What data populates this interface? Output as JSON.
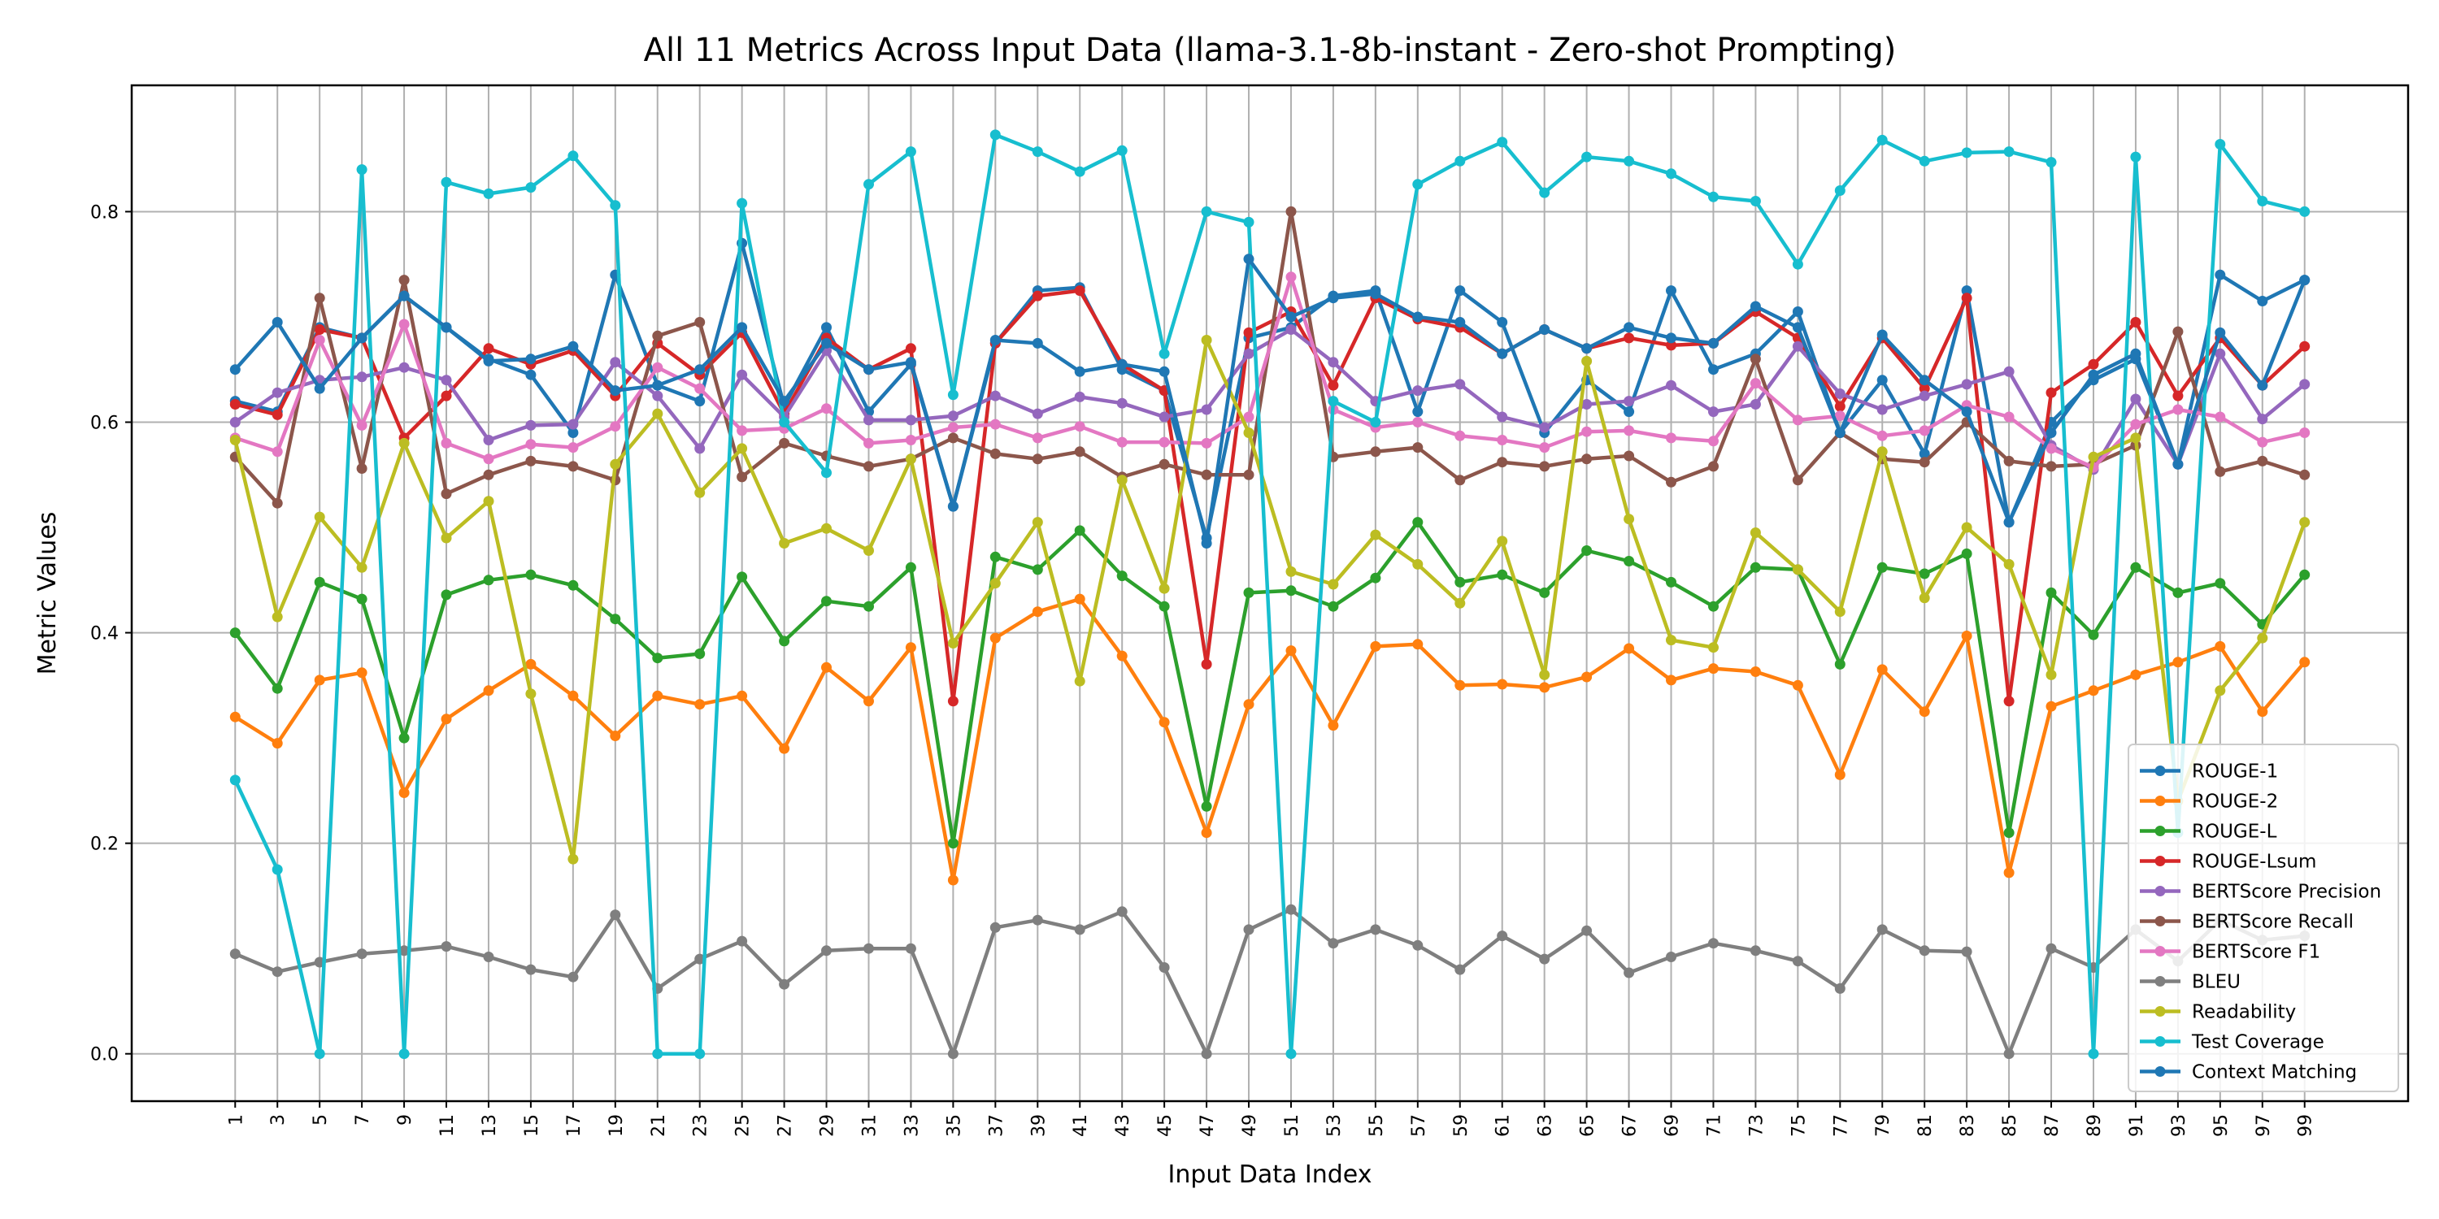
{
  "chart_data": {
    "type": "line",
    "title": "All 11 Metrics Across Input Data (llama-3.1-8b-instant - Zero-shot Prompting)",
    "xlabel": "Input Data Index",
    "ylabel": "Metric Values",
    "ylim": [
      -0.045,
      0.92
    ],
    "yticks": [
      "0.0",
      "0.2",
      "0.4",
      "0.6",
      "0.8"
    ],
    "grid": true,
    "legend_position": "bottom-right",
    "x": [
      1,
      3,
      5,
      7,
      9,
      11,
      13,
      15,
      17,
      19,
      21,
      23,
      25,
      27,
      29,
      31,
      33,
      35,
      37,
      39,
      41,
      43,
      45,
      47,
      49,
      51,
      53,
      55,
      57,
      59,
      61,
      63,
      65,
      67,
      69,
      71,
      73,
      75,
      77,
      79,
      81,
      83,
      85,
      87,
      89,
      91,
      93,
      95,
      97,
      99
    ],
    "xtick_labels": [
      "1",
      "3",
      "5",
      "7",
      "9",
      "11",
      "13",
      "15",
      "17",
      "19",
      "21",
      "23",
      "25",
      "27",
      "29",
      "31",
      "33",
      "35",
      "37",
      "39",
      "41",
      "43",
      "45",
      "47",
      "49",
      "51",
      "53",
      "55",
      "57",
      "59",
      "61",
      "63",
      "65",
      "67",
      "69",
      "71",
      "73",
      "75",
      "77",
      "79",
      "81",
      "83",
      "85",
      "87",
      "89",
      "91",
      "93",
      "95",
      "97",
      "99"
    ],
    "series": [
      {
        "name": "ROUGE-1",
        "color": "#1f77b4",
        "values": [
          0.62,
          0.61,
          0.69,
          0.68,
          0.72,
          0.69,
          0.66,
          0.645,
          0.59,
          0.74,
          0.635,
          0.62,
          0.77,
          0.615,
          0.69,
          0.61,
          0.655,
          0.52,
          0.675,
          0.725,
          0.728,
          0.65,
          0.63,
          0.49,
          0.68,
          0.69,
          0.72,
          0.725,
          0.61,
          0.725,
          0.695,
          0.59,
          0.64,
          0.61,
          0.725,
          0.65,
          0.665,
          0.705,
          0.59,
          0.64,
          0.57,
          0.725,
          0.505,
          0.6,
          0.64,
          0.66,
          0.56,
          0.74,
          0.715,
          0.735
        ]
      },
      {
        "name": "ROUGE-2",
        "color": "#ff7f0e",
        "values": [
          0.32,
          0.295,
          0.355,
          0.362,
          0.248,
          0.318,
          0.345,
          0.37,
          0.34,
          0.302,
          0.34,
          0.332,
          0.34,
          0.29,
          0.367,
          0.335,
          0.386,
          0.165,
          0.395,
          0.42,
          0.432,
          0.378,
          0.315,
          0.21,
          0.332,
          0.383,
          0.312,
          0.387,
          0.389,
          0.35,
          0.351,
          0.348,
          0.358,
          0.385,
          0.355,
          0.366,
          0.363,
          0.35,
          0.265,
          0.365,
          0.325,
          0.397,
          0.172,
          0.33,
          0.345,
          0.36,
          0.372,
          0.387,
          0.325,
          0.372
        ]
      },
      {
        "name": "ROUGE-L",
        "color": "#2ca02c",
        "values": [
          0.4,
          0.347,
          0.448,
          0.432,
          0.3,
          0.436,
          0.45,
          0.455,
          0.445,
          0.413,
          0.376,
          0.38,
          0.453,
          0.392,
          0.43,
          0.425,
          0.462,
          0.2,
          0.472,
          0.46,
          0.497,
          0.454,
          0.425,
          0.235,
          0.438,
          0.44,
          0.425,
          0.452,
          0.505,
          0.448,
          0.455,
          0.438,
          0.478,
          0.468,
          0.448,
          0.425,
          0.462,
          0.46,
          0.37,
          0.462,
          0.456,
          0.475,
          0.21,
          0.438,
          0.398,
          0.462,
          0.438,
          0.447,
          0.408,
          0.455
        ]
      },
      {
        "name": "ROUGE-Lsum",
        "color": "#d62728",
        "values": [
          0.617,
          0.607,
          0.688,
          0.68,
          0.585,
          0.625,
          0.67,
          0.655,
          0.668,
          0.625,
          0.675,
          0.645,
          0.685,
          0.608,
          0.68,
          0.65,
          0.67,
          0.335,
          0.675,
          0.72,
          0.725,
          0.655,
          0.63,
          0.37,
          0.685,
          0.705,
          0.635,
          0.718,
          0.698,
          0.69,
          0.665,
          0.688,
          0.67,
          0.68,
          0.673,
          0.675,
          0.705,
          0.68,
          0.615,
          0.68,
          0.632,
          0.718,
          0.335,
          0.628,
          0.655,
          0.695,
          0.625,
          0.68,
          0.635,
          0.672
        ]
      },
      {
        "name": "BERTScore Precision",
        "color": "#9467bd",
        "values": [
          0.6,
          0.628,
          0.64,
          0.643,
          0.652,
          0.64,
          0.583,
          0.597,
          0.598,
          0.657,
          0.625,
          0.575,
          0.645,
          0.605,
          0.668,
          0.602,
          0.602,
          0.606,
          0.625,
          0.608,
          0.624,
          0.618,
          0.605,
          0.612,
          0.665,
          0.688,
          0.657,
          0.62,
          0.63,
          0.636,
          0.605,
          0.595,
          0.617,
          0.62,
          0.635,
          0.61,
          0.617,
          0.672,
          0.627,
          0.612,
          0.625,
          0.636,
          0.648,
          0.578,
          0.555,
          0.622,
          0.56,
          0.665,
          0.603,
          0.636
        ]
      },
      {
        "name": "BERTScore Recall",
        "color": "#8c564b",
        "values": [
          0.567,
          0.523,
          0.718,
          0.556,
          0.735,
          0.532,
          0.55,
          0.563,
          0.558,
          0.545,
          0.682,
          0.695,
          0.548,
          0.58,
          0.568,
          0.558,
          0.565,
          0.585,
          0.57,
          0.565,
          0.572,
          0.548,
          0.56,
          0.55,
          0.55,
          0.8,
          0.567,
          0.572,
          0.576,
          0.545,
          0.562,
          0.558,
          0.565,
          0.568,
          0.543,
          0.558,
          0.66,
          0.545,
          0.59,
          0.565,
          0.562,
          0.6,
          0.563,
          0.558,
          0.56,
          0.578,
          0.686,
          0.553,
          0.563,
          0.55
        ]
      },
      {
        "name": "BERTScore F1",
        "color": "#e377c2",
        "values": [
          0.585,
          0.572,
          0.678,
          0.597,
          0.693,
          0.58,
          0.565,
          0.579,
          0.576,
          0.596,
          0.652,
          0.632,
          0.592,
          0.594,
          0.613,
          0.58,
          0.583,
          0.595,
          0.598,
          0.585,
          0.596,
          0.581,
          0.581,
          0.58,
          0.605,
          0.738,
          0.612,
          0.595,
          0.6,
          0.587,
          0.583,
          0.576,
          0.591,
          0.592,
          0.585,
          0.582,
          0.637,
          0.602,
          0.606,
          0.587,
          0.592,
          0.616,
          0.605,
          0.575,
          0.557,
          0.598,
          0.612,
          0.605,
          0.581,
          0.59
        ]
      },
      {
        "name": "BLEU",
        "color": "#7f7f7f",
        "values": [
          0.095,
          0.078,
          0.087,
          0.095,
          0.098,
          0.102,
          0.092,
          0.08,
          0.073,
          0.132,
          0.062,
          0.09,
          0.107,
          0.066,
          0.098,
          0.1,
          0.1,
          0.0,
          0.12,
          0.127,
          0.118,
          0.135,
          0.082,
          0.0,
          0.118,
          0.137,
          0.105,
          0.118,
          0.103,
          0.08,
          0.112,
          0.09,
          0.117,
          0.077,
          0.092,
          0.105,
          0.098,
          0.088,
          0.062,
          0.118,
          0.098,
          0.097,
          0.0,
          0.1,
          0.082,
          0.118,
          0.088,
          0.127,
          0.108,
          0.112
        ]
      },
      {
        "name": "Readability",
        "color": "#bcbd22",
        "values": [
          0.583,
          0.415,
          0.51,
          0.462,
          0.58,
          0.49,
          0.525,
          0.342,
          0.185,
          0.56,
          0.608,
          0.533,
          0.575,
          0.485,
          0.499,
          0.478,
          0.565,
          0.39,
          0.447,
          0.505,
          0.354,
          0.545,
          0.442,
          0.678,
          0.59,
          0.458,
          0.446,
          0.493,
          0.465,
          0.428,
          0.487,
          0.36,
          0.658,
          0.508,
          0.393,
          0.386,
          0.495,
          0.46,
          0.42,
          0.572,
          0.433,
          0.5,
          0.465,
          0.36,
          0.567,
          0.585,
          0.24,
          0.345,
          0.395,
          0.505
        ]
      },
      {
        "name": "Test Coverage",
        "color": "#17becf",
        "values": [
          0.26,
          0.175,
          0.0,
          0.84,
          0.0,
          0.828,
          0.817,
          0.823,
          0.853,
          0.806,
          0.0,
          0.0,
          0.808,
          0.6,
          0.552,
          0.826,
          0.857,
          0.626,
          0.873,
          0.857,
          0.838,
          0.858,
          0.665,
          0.8,
          0.79,
          0.0,
          0.62,
          0.6,
          0.826,
          0.848,
          0.866,
          0.818,
          0.852,
          0.848,
          0.836,
          0.814,
          0.81,
          0.75,
          0.82,
          0.868,
          0.848,
          0.856,
          0.857,
          0.847,
          0.0,
          0.852,
          0.21,
          0.864,
          0.81,
          0.8
        ]
      },
      {
        "name": "Context Matching",
        "color": "#1f77b4",
        "values": [
          0.65,
          0.695,
          0.632,
          0.68,
          0.72,
          0.69,
          0.658,
          0.66,
          0.672,
          0.63,
          0.635,
          0.65,
          0.69,
          0.62,
          0.675,
          0.65,
          0.657,
          0.52,
          0.678,
          0.675,
          0.648,
          0.655,
          0.648,
          0.485,
          0.755,
          0.7,
          0.718,
          0.722,
          0.7,
          0.695,
          0.665,
          0.688,
          0.67,
          0.69,
          0.68,
          0.675,
          0.71,
          0.69,
          0.59,
          0.683,
          0.64,
          0.61,
          0.505,
          0.59,
          0.645,
          0.665,
          0.56,
          0.685,
          0.635,
          0.735
        ]
      }
    ]
  }
}
